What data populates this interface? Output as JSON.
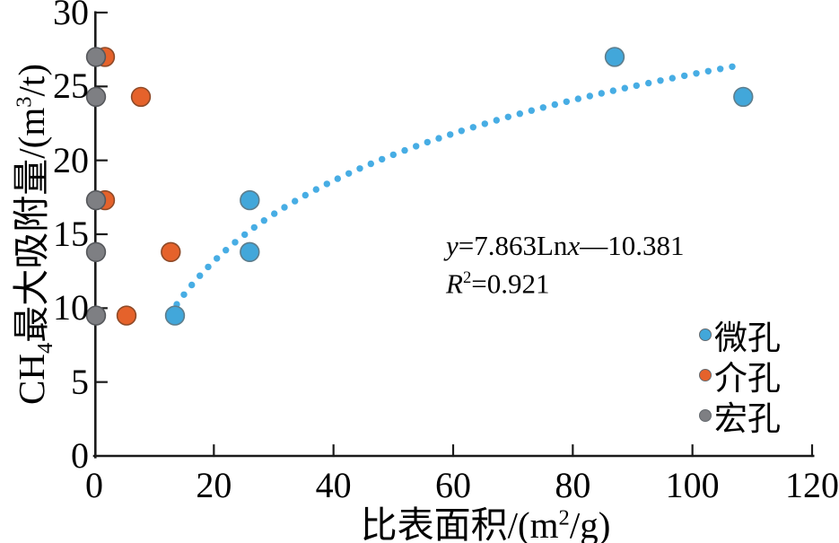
{
  "chart_data": {
    "type": "scatter",
    "title": "",
    "xlabel": "比表面积/(m²/g)",
    "ylabel": "CH₄最大吸附量/(m³/t)",
    "xlim": [
      0,
      120
    ],
    "ylim": [
      0,
      30
    ],
    "xticks": [
      0,
      20,
      40,
      60,
      80,
      100,
      120
    ],
    "yticks": [
      0,
      5,
      10,
      15,
      20,
      25,
      30
    ],
    "grid": false,
    "legend_position": "right-middle",
    "series": [
      {
        "name": "微孔",
        "key": "micropore",
        "color": "#42A7DA",
        "stroke": "#5d7d8c",
        "points": [
          [
            13.5,
            9.5
          ],
          [
            26,
            13.8
          ],
          [
            26,
            17.3
          ],
          [
            87,
            27
          ],
          [
            108.5,
            24.3
          ]
        ]
      },
      {
        "name": "介孔",
        "key": "mesopore",
        "color": "#E5622B",
        "stroke": "#8e4a28",
        "points": [
          [
            1.8,
            27
          ],
          [
            7.8,
            24.3
          ],
          [
            1.8,
            17.3
          ],
          [
            12.8,
            13.8
          ],
          [
            5.4,
            9.5
          ]
        ]
      },
      {
        "name": "宏孔",
        "key": "macropore",
        "color": "#7E7F83",
        "stroke": "#55575b",
        "points": [
          [
            0.3,
            27
          ],
          [
            0.3,
            24.3
          ],
          [
            0.3,
            17.3
          ],
          [
            0.3,
            13.8
          ],
          [
            0.3,
            9.5
          ]
        ]
      }
    ],
    "trendline": {
      "style": "dotted",
      "color": "#47ADE4",
      "model": "y = a*ln(x) + b",
      "a": 7.863,
      "b": -10.381,
      "x_start": 13.8,
      "x_end": 108.5,
      "equation": "y=7.863Lnx—10.381",
      "r_squared": "R²=0.921"
    }
  },
  "labels": {
    "y_title": {
      "p1": "CH",
      "sub": "4",
      "p2": "最大吸附量/(m",
      "sup": "3",
      "p3": "/t)"
    },
    "x_title": {
      "p1": "比表面积/(m",
      "sup": "2",
      "p2": "/g)"
    },
    "equation": {
      "y": "y",
      "mid": "=7.863Ln",
      "x": "x",
      "tail": "—10.381"
    },
    "r2": {
      "r": "R",
      "sup": "2",
      "tail": "=0.921"
    }
  },
  "colors": {
    "axis": "#1a1a1a",
    "text": "#000000",
    "background": "#ffffff"
  }
}
